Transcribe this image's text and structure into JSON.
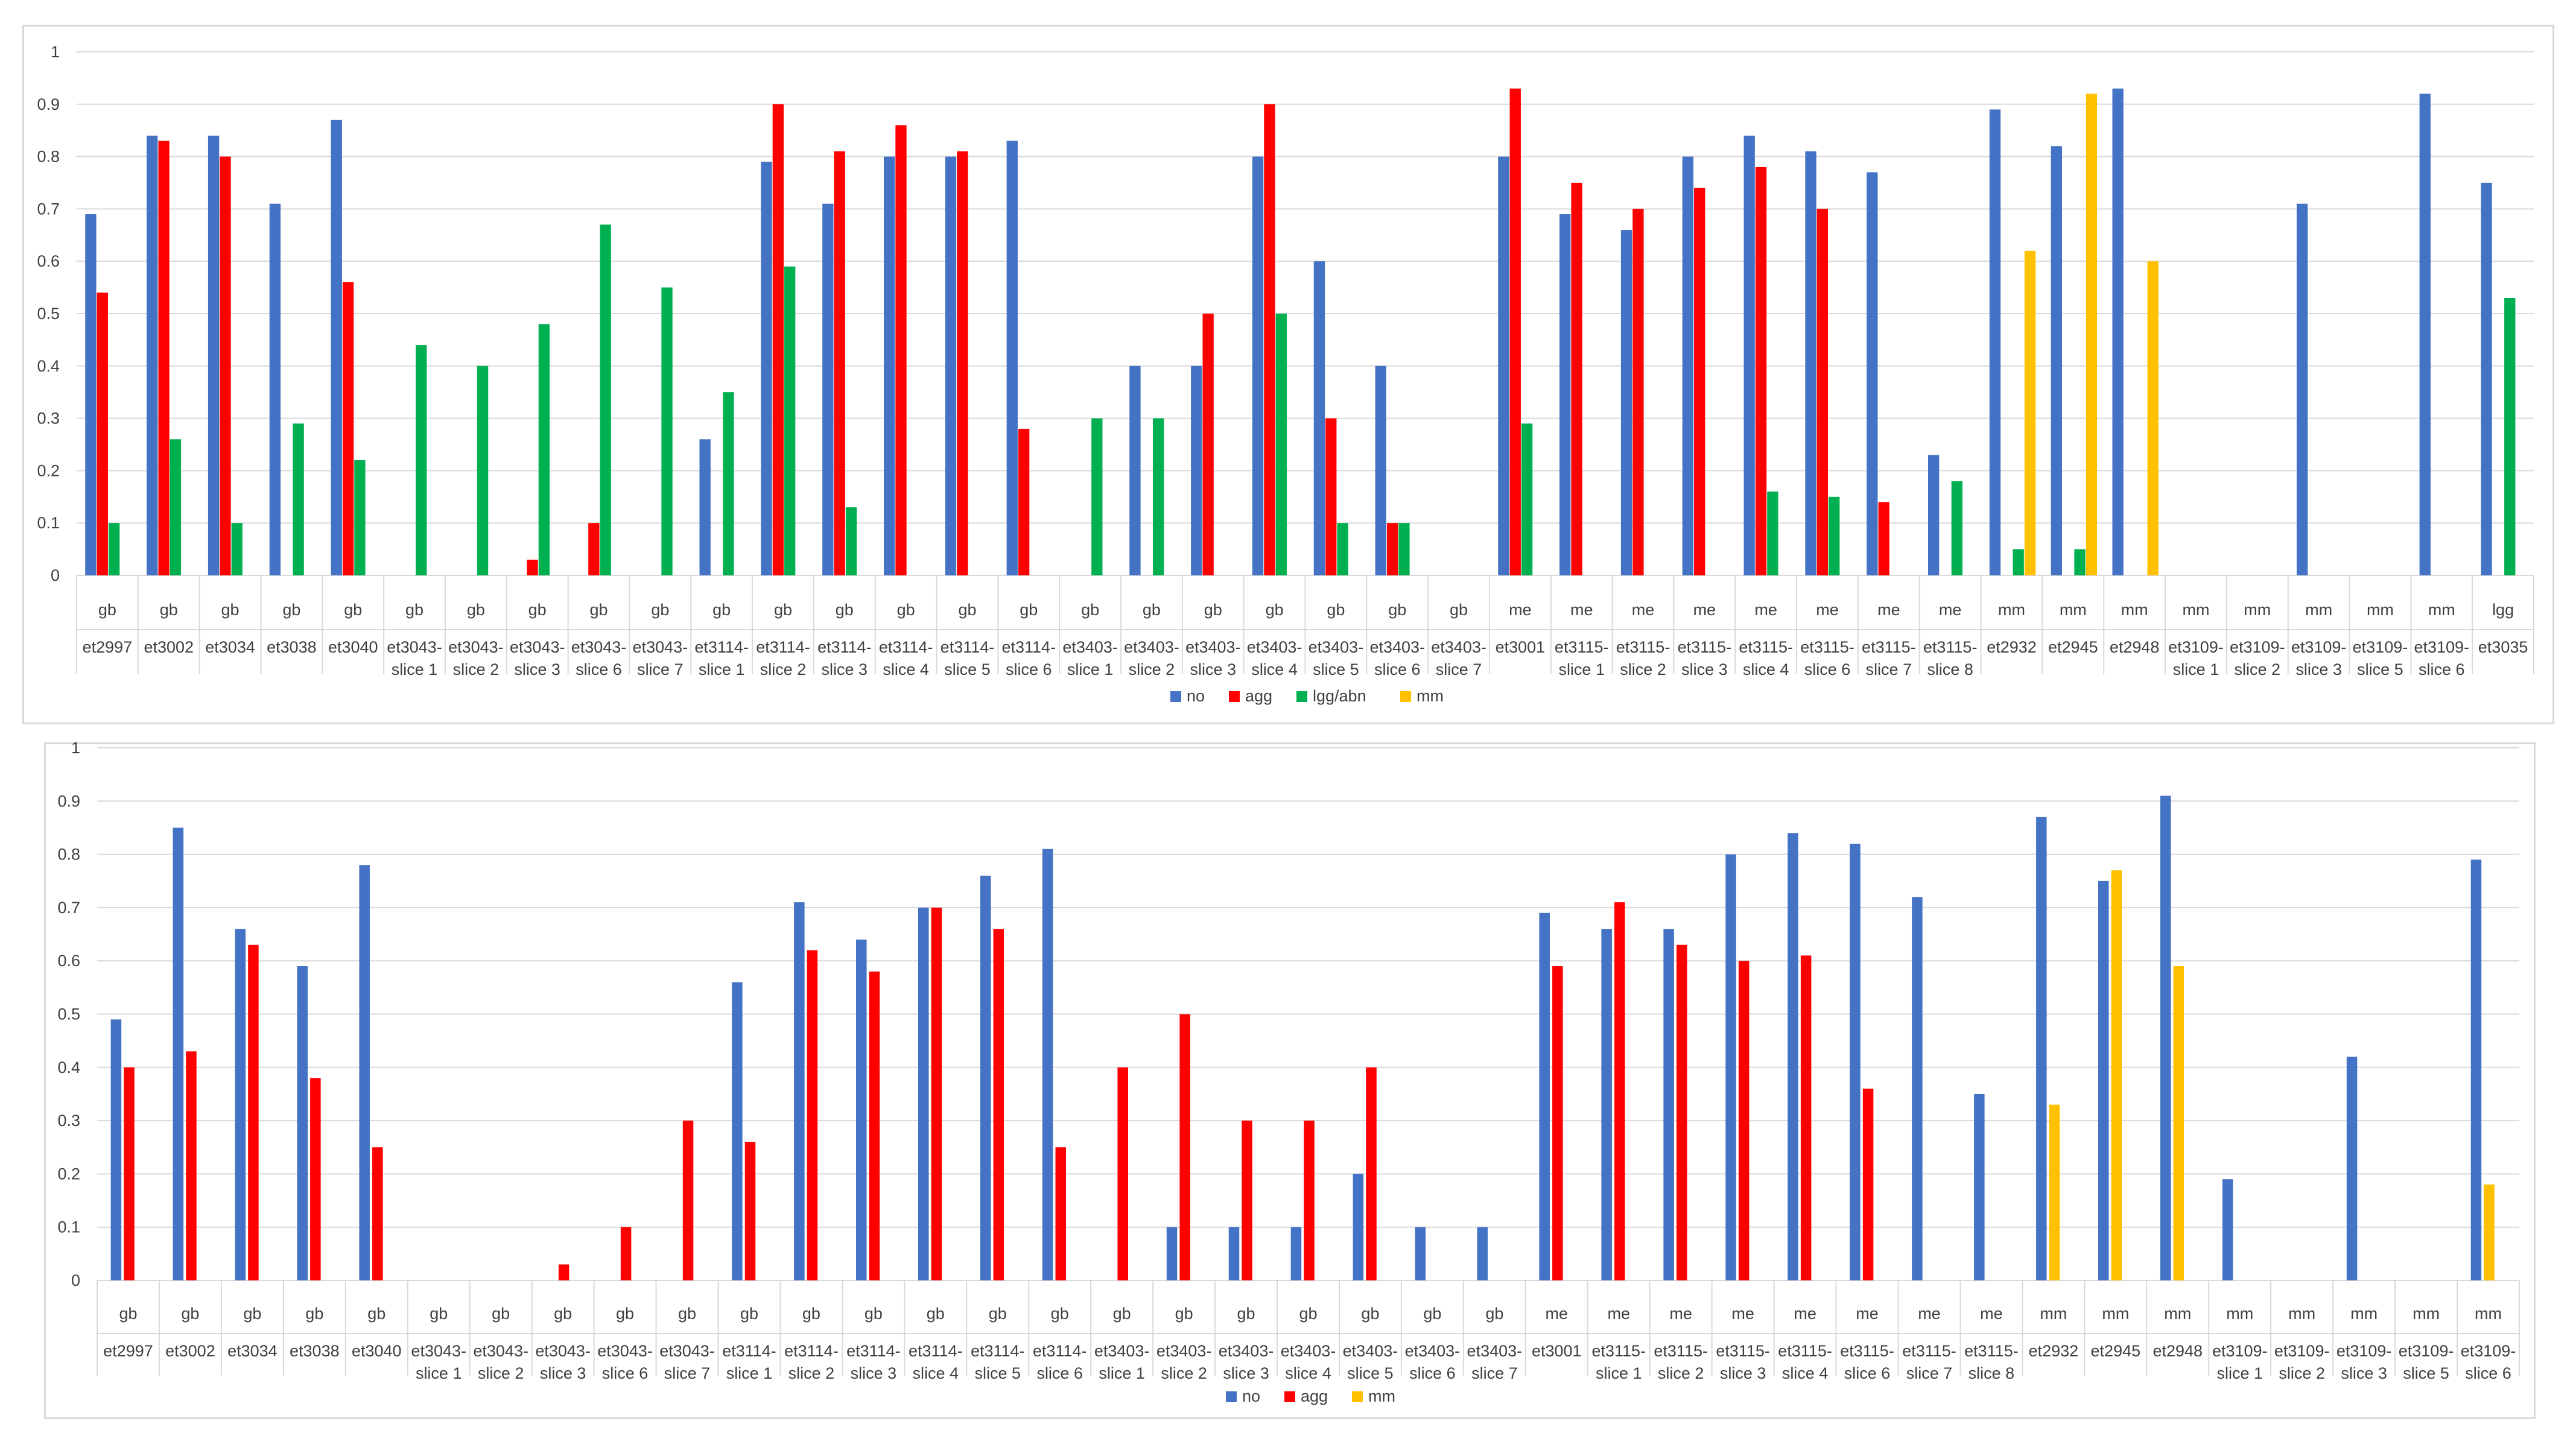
{
  "colors": {
    "no": "#4472C4",
    "agg": "#FF0000",
    "lgg_abn": "#00B050",
    "mm": "#FFC000",
    "grid": "#D9D9D9",
    "text": "#404040"
  },
  "chart_data": [
    {
      "type": "bar",
      "title": "",
      "xlabel": "",
      "ylabel": "",
      "ylim": [
        0,
        1
      ],
      "yticks": [
        "0",
        "0.1",
        "0.2",
        "0.3",
        "0.4",
        "0.5",
        "0.6",
        "0.7",
        "0.8",
        "0.9",
        "1"
      ],
      "legend_position": "bottom",
      "groups": [
        "gb",
        "gb",
        "gb",
        "gb",
        "gb",
        "gb",
        "gb",
        "gb",
        "gb",
        "gb",
        "gb",
        "gb",
        "gb",
        "gb",
        "gb",
        "gb",
        "gb",
        "gb",
        "gb",
        "gb",
        "gb",
        "gb",
        "gb",
        "me",
        "me",
        "me",
        "me",
        "me",
        "me",
        "me",
        "me",
        "mm",
        "mm",
        "mm",
        "mm",
        "mm",
        "mm",
        "mm",
        "mm",
        "lgg"
      ],
      "categories": [
        [
          "et2997"
        ],
        [
          "et3002"
        ],
        [
          "et3034"
        ],
        [
          "et3038"
        ],
        [
          "et3040"
        ],
        [
          "et3043-",
          "slice 1"
        ],
        [
          "et3043-",
          "slice 2"
        ],
        [
          "et3043-",
          "slice 3"
        ],
        [
          "et3043-",
          "slice 6"
        ],
        [
          "et3043-",
          "slice 7"
        ],
        [
          "et3114-",
          "slice 1"
        ],
        [
          "et3114-",
          "slice 2"
        ],
        [
          "et3114-",
          "slice 3"
        ],
        [
          "et3114-",
          "slice 4"
        ],
        [
          "et3114-",
          "slice 5"
        ],
        [
          "et3114-",
          "slice 6"
        ],
        [
          "et3403-",
          "slice 1"
        ],
        [
          "et3403-",
          "slice 2"
        ],
        [
          "et3403-",
          "slice 3"
        ],
        [
          "et3403-",
          "slice 4"
        ],
        [
          "et3403-",
          "slice 5"
        ],
        [
          "et3403-",
          "slice 6"
        ],
        [
          "et3403-",
          "slice 7"
        ],
        [
          "et3001"
        ],
        [
          "et3115-",
          "slice 1"
        ],
        [
          "et3115-",
          "slice 2"
        ],
        [
          "et3115-",
          "slice 3"
        ],
        [
          "et3115-",
          "slice 4"
        ],
        [
          "et3115-",
          "slice 6"
        ],
        [
          "et3115-",
          "slice 7"
        ],
        [
          "et3115-",
          "slice 8"
        ],
        [
          "et2932"
        ],
        [
          "et2945"
        ],
        [
          "et2948"
        ],
        [
          "et3109-",
          "slice 1"
        ],
        [
          "et3109-",
          "slice 2"
        ],
        [
          "et3109-",
          "slice 3"
        ],
        [
          "et3109-",
          "slice 5"
        ],
        [
          "et3109-",
          "slice 6"
        ],
        [
          "et3035"
        ]
      ],
      "series": [
        {
          "name": "no",
          "color_key": "no",
          "values": [
            0.69,
            0.84,
            0.84,
            0.71,
            0.87,
            0,
            0,
            0,
            0,
            0,
            0.26,
            0.79,
            0.71,
            0.8,
            0.8,
            0.83,
            0,
            0.4,
            0.4,
            0.8,
            0.6,
            0.4,
            0,
            0.8,
            0.69,
            0.66,
            0.8,
            0.84,
            0.81,
            0.77,
            0.23,
            0.89,
            0.82,
            0.93,
            0,
            0,
            0.71,
            0,
            0.92,
            0.75
          ]
        },
        {
          "name": "agg",
          "color_key": "agg",
          "values": [
            0.54,
            0.83,
            0.8,
            0,
            0.56,
            0,
            0,
            0.03,
            0.1,
            0,
            0,
            0.9,
            0.81,
            0.86,
            0.81,
            0.28,
            0,
            0,
            0.5,
            0.9,
            0.3,
            0.1,
            0,
            0.93,
            0.75,
            0.7,
            0.74,
            0.78,
            0.7,
            0.14,
            0,
            0,
            0,
            0,
            0,
            0,
            0,
            0,
            0,
            0
          ]
        },
        {
          "name": "lgg/abn",
          "color_key": "lgg_abn",
          "values": [
            0.1,
            0.26,
            0.1,
            0.29,
            0.22,
            0.44,
            0.4,
            0.48,
            0.67,
            0.55,
            0.35,
            0.59,
            0.13,
            0,
            0,
            0,
            0.3,
            0.3,
            0,
            0.5,
            0.1,
            0.1,
            0,
            0.29,
            0,
            0,
            0,
            0.16,
            0.15,
            0,
            0.18,
            0.05,
            0.05,
            0,
            0,
            0,
            0,
            0,
            0,
            0.53
          ]
        },
        {
          "name": "mm",
          "color_key": "mm",
          "values": [
            0,
            0,
            0,
            0,
            0,
            0,
            0,
            0,
            0,
            0,
            0,
            0,
            0,
            0,
            0,
            0,
            0,
            0,
            0,
            0,
            0,
            0,
            0,
            0,
            0,
            0,
            0,
            0,
            0,
            0,
            0,
            0.62,
            0.92,
            0.6,
            0,
            0,
            0,
            0,
            0,
            0
          ]
        }
      ]
    },
    {
      "type": "bar",
      "title": "",
      "xlabel": "",
      "ylabel": "",
      "ylim": [
        0,
        1
      ],
      "yticks": [
        "0",
        "0.1",
        "0.2",
        "0.3",
        "0.4",
        "0.5",
        "0.6",
        "0.7",
        "0.8",
        "0.9",
        "1"
      ],
      "legend_position": "bottom",
      "groups": [
        "gb",
        "gb",
        "gb",
        "gb",
        "gb",
        "gb",
        "gb",
        "gb",
        "gb",
        "gb",
        "gb",
        "gb",
        "gb",
        "gb",
        "gb",
        "gb",
        "gb",
        "gb",
        "gb",
        "gb",
        "gb",
        "gb",
        "gb",
        "me",
        "me",
        "me",
        "me",
        "me",
        "me",
        "me",
        "me",
        "mm",
        "mm",
        "mm",
        "mm",
        "mm",
        "mm",
        "mm",
        "mm"
      ],
      "categories": [
        [
          "et2997"
        ],
        [
          "et3002"
        ],
        [
          "et3034"
        ],
        [
          "et3038"
        ],
        [
          "et3040"
        ],
        [
          "et3043-",
          "slice 1"
        ],
        [
          "et3043-",
          "slice 2"
        ],
        [
          "et3043-",
          "slice 3"
        ],
        [
          "et3043-",
          "slice 6"
        ],
        [
          "et3043-",
          "slice 7"
        ],
        [
          "et3114-",
          "slice 1"
        ],
        [
          "et3114-",
          "slice 2"
        ],
        [
          "et3114-",
          "slice 3"
        ],
        [
          "et3114-",
          "slice 4"
        ],
        [
          "et3114-",
          "slice 5"
        ],
        [
          "et3114-",
          "slice 6"
        ],
        [
          "et3403-",
          "slice 1"
        ],
        [
          "et3403-",
          "slice 2"
        ],
        [
          "et3403-",
          "slice 3"
        ],
        [
          "et3403-",
          "slice 4"
        ],
        [
          "et3403-",
          "slice 5"
        ],
        [
          "et3403-",
          "slice 6"
        ],
        [
          "et3403-",
          "slice 7"
        ],
        [
          "et3001"
        ],
        [
          "et3115-",
          "slice 1"
        ],
        [
          "et3115-",
          "slice 2"
        ],
        [
          "et3115-",
          "slice 3"
        ],
        [
          "et3115-",
          "slice 4"
        ],
        [
          "et3115-",
          "slice 6"
        ],
        [
          "et3115-",
          "slice 7"
        ],
        [
          "et3115-",
          "slice 8"
        ],
        [
          "et2932"
        ],
        [
          "et2945"
        ],
        [
          "et2948"
        ],
        [
          "et3109-",
          "slice 1"
        ],
        [
          "et3109-",
          "slice 2"
        ],
        [
          "et3109-",
          "slice 3"
        ],
        [
          "et3109-",
          "slice 5"
        ],
        [
          "et3109-",
          "slice 6"
        ]
      ],
      "series": [
        {
          "name": "no",
          "color_key": "no",
          "values": [
            0.49,
            0.85,
            0.66,
            0.59,
            0.78,
            0,
            0,
            0,
            0,
            0,
            0.56,
            0.71,
            0.64,
            0.7,
            0.76,
            0.81,
            0,
            0.1,
            0.1,
            0.1,
            0.2,
            0.1,
            0.1,
            0.69,
            0.66,
            0.66,
            0.8,
            0.84,
            0.82,
            0.72,
            0.35,
            0.87,
            0.75,
            0.91,
            0.19,
            0,
            0.42,
            0,
            0.79
          ]
        },
        {
          "name": "agg",
          "color_key": "agg",
          "values": [
            0.4,
            0.43,
            0.63,
            0.38,
            0.25,
            0,
            0,
            0.03,
            0.1,
            0.3,
            0.26,
            0.62,
            0.58,
            0.7,
            0.66,
            0.25,
            0.4,
            0.5,
            0.3,
            0.3,
            0.4,
            0,
            0,
            0.59,
            0.71,
            0.63,
            0.6,
            0.61,
            0.36,
            0,
            0,
            0,
            0,
            0,
            0,
            0,
            0,
            0,
            0
          ]
        },
        {
          "name": "mm",
          "color_key": "mm",
          "values": [
            0,
            0,
            0,
            0,
            0,
            0,
            0,
            0,
            0,
            0,
            0,
            0,
            0,
            0,
            0,
            0,
            0,
            0,
            0,
            0,
            0,
            0,
            0,
            0,
            0,
            0,
            0,
            0,
            0,
            0,
            0,
            0.33,
            0.77,
            0.59,
            0,
            0,
            0,
            0,
            0.18
          ]
        }
      ]
    }
  ]
}
